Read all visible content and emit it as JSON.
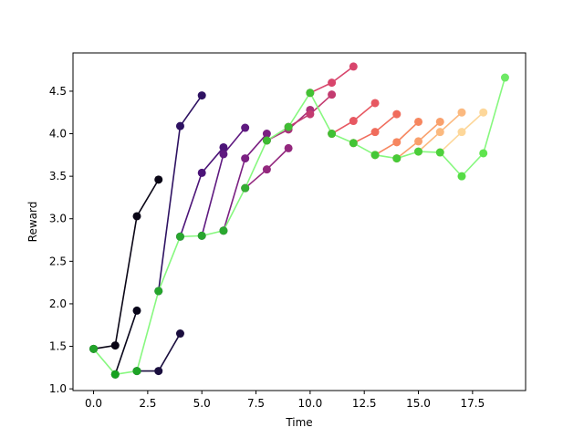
{
  "chart_data": {
    "type": "line",
    "title": "",
    "xlabel": "Time",
    "ylabel": "Reward",
    "xlim": [
      -0.95,
      19.95
    ],
    "ylim": [
      0.98,
      4.95
    ],
    "x_ticks": [
      0,
      2.5,
      5,
      7.5,
      10,
      12.5,
      15,
      17.5
    ],
    "x_tick_labels": [
      "0.0",
      "2.5",
      "5.0",
      "7.5",
      "10.0",
      "12.5",
      "15.0",
      "17.5"
    ],
    "y_ticks": [
      1.0,
      1.5,
      2.0,
      2.5,
      3.0,
      3.5,
      4.0,
      4.5
    ],
    "y_tick_labels": [
      "1.0",
      "1.5",
      "2.0",
      "2.5",
      "3.0",
      "3.5",
      "4.0",
      "4.5"
    ],
    "grid": false,
    "legend": "none",
    "series": [
      {
        "color": "#0a0616",
        "points": [
          [
            0,
            1.47
          ],
          [
            1,
            1.51
          ],
          [
            2,
            3.03
          ],
          [
            3,
            3.46
          ]
        ]
      },
      {
        "color": "#08051a",
        "points": [
          [
            1,
            1.17
          ],
          [
            2,
            1.92
          ]
        ]
      },
      {
        "color": "#1a0e3e",
        "points": [
          [
            2,
            1.21
          ],
          [
            3,
            1.21
          ],
          [
            4,
            1.65
          ]
        ]
      },
      {
        "color": "#2e1262",
        "points": [
          [
            3,
            2.15
          ],
          [
            4,
            4.09
          ],
          [
            5,
            4.45
          ]
        ]
      },
      {
        "color": "#4c1478",
        "points": [
          [
            4,
            2.79
          ],
          [
            5,
            3.54
          ],
          [
            6,
            3.84
          ]
        ]
      },
      {
        "color": "#5f1a80",
        "points": [
          [
            5,
            2.8
          ],
          [
            6,
            3.76
          ],
          [
            7,
            4.07
          ]
        ]
      },
      {
        "color": "#7b2082",
        "points": [
          [
            6,
            2.86
          ],
          [
            7,
            3.71
          ],
          [
            8,
            4.0
          ]
        ]
      },
      {
        "color": "#93287e",
        "points": [
          [
            7,
            3.36
          ],
          [
            8,
            3.58
          ],
          [
            9,
            3.83
          ]
        ]
      },
      {
        "color": "#a8317a",
        "points": [
          [
            8,
            3.92
          ],
          [
            9,
            4.05
          ],
          [
            10,
            4.28
          ]
        ]
      },
      {
        "color": "#c33b70",
        "points": [
          [
            9,
            4.08
          ],
          [
            10,
            4.23
          ],
          [
            11,
            4.46
          ]
        ]
      },
      {
        "color": "#d8456c",
        "points": [
          [
            10,
            4.48
          ],
          [
            11,
            4.6
          ],
          [
            12,
            4.79
          ]
        ]
      },
      {
        "color": "#e75862",
        "points": [
          [
            11,
            4.0
          ],
          [
            12,
            4.15
          ],
          [
            13,
            4.36
          ]
        ]
      },
      {
        "color": "#f06c5c",
        "points": [
          [
            12,
            3.89
          ],
          [
            13,
            4.02
          ],
          [
            14,
            4.23
          ]
        ]
      },
      {
        "color": "#f6865f",
        "points": [
          [
            13,
            3.75
          ],
          [
            14,
            3.9
          ],
          [
            15,
            4.14
          ]
        ]
      },
      {
        "color": "#f9a06c",
        "points": [
          [
            14,
            3.71
          ],
          [
            15,
            3.91
          ],
          [
            16,
            4.14
          ]
        ]
      },
      {
        "color": "#fbb97f",
        "points": [
          [
            15,
            3.79
          ],
          [
            16,
            4.02
          ],
          [
            17,
            4.25
          ]
        ]
      },
      {
        "color": "#fdd79a",
        "points": [
          [
            16,
            3.78
          ],
          [
            17,
            4.02
          ],
          [
            18,
            4.25
          ]
        ]
      },
      {
        "color": "#87f87f",
        "points": [
          [
            0,
            1.47
          ],
          [
            1,
            1.17
          ],
          [
            2,
            1.21
          ],
          [
            3,
            2.15
          ],
          [
            4,
            2.79
          ],
          [
            5,
            2.8
          ],
          [
            6,
            2.86
          ],
          [
            7,
            3.36
          ],
          [
            8,
            3.92
          ],
          [
            9,
            4.08
          ],
          [
            10,
            4.48
          ],
          [
            11,
            4.0
          ],
          [
            12,
            3.89
          ],
          [
            13,
            3.75
          ],
          [
            14,
            3.71
          ],
          [
            15,
            3.79
          ],
          [
            16,
            3.78
          ],
          [
            17,
            3.5
          ],
          [
            18,
            3.77
          ],
          [
            19,
            4.66
          ]
        ],
        "marker_colors": [
          "#22a32a",
          "#16a11f",
          "#1ea326",
          "#25a52c",
          "#28a62e",
          "#28a62e",
          "#2aa82f",
          "#34ae33",
          "#3dbb32",
          "#3fbd34",
          "#42c234",
          "#40c033",
          "#43c434",
          "#45c736",
          "#47ca38",
          "#4acd3a",
          "#4dd13d",
          "#55dc45",
          "#5fe44e",
          "#6ee965"
        ]
      }
    ]
  }
}
